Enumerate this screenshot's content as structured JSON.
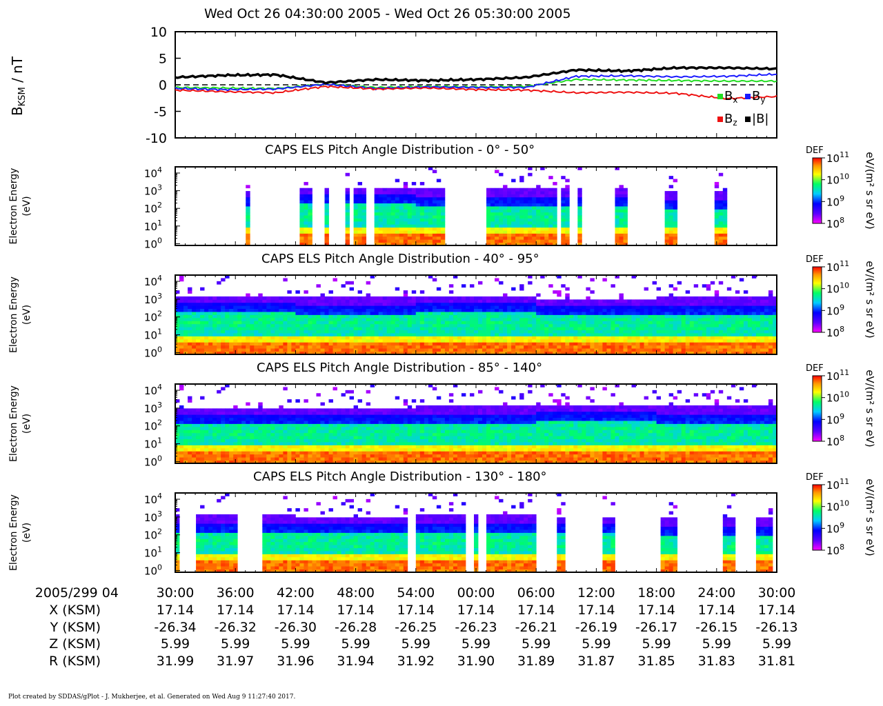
{
  "title": "Wed Oct 26 04:30:00 2005 - Wed Oct 26 05:30:00 2005",
  "footer": "Plot created by SDDAS/gPlot - J. Mukherjee, et al.  Generated on Wed Aug  9 11:27:40 2017.",
  "colors": {
    "bx": "#22dd22",
    "by": "#1a1aff",
    "bz": "#ee1111",
    "b": "#000000"
  },
  "chart_data": [
    {
      "type": "line",
      "ylabel": "B_KSM / nT",
      "ylabel_main": "B",
      "ylabel_sub": "KSM",
      "ylabel_unit": " / nT",
      "ylim": [
        -10,
        10
      ],
      "yticks": [
        "10",
        "5",
        "0",
        "-5",
        "-10"
      ],
      "x_minutes": [
        0,
        5,
        10,
        15,
        20,
        25,
        30,
        35,
        40,
        45,
        50,
        55,
        60
      ],
      "series": [
        {
          "name": "Bx",
          "values": [
            -0.5,
            -0.6,
            -0.7,
            0.1,
            -0.5,
            -0.3,
            -0.4,
            -0.3,
            1.0,
            0.9,
            0.8,
            0.7,
            0.7
          ]
        },
        {
          "name": "By",
          "values": [
            -0.7,
            -0.9,
            -0.8,
            0.1,
            -0.7,
            -0.4,
            -0.5,
            -0.5,
            1.6,
            1.7,
            1.5,
            1.6,
            2.0
          ]
        },
        {
          "name": "Bz",
          "values": [
            -1.0,
            -1.3,
            -1.5,
            -0.3,
            -0.8,
            -0.6,
            -0.9,
            -1.0,
            -1.5,
            -1.4,
            -1.6,
            -2.6,
            -2.2
          ]
        },
        {
          "name": "|B|",
          "values": [
            1.4,
            1.8,
            1.9,
            0.4,
            1.0,
            0.8,
            1.0,
            1.4,
            2.8,
            2.6,
            3.2,
            3.2,
            3.0
          ]
        }
      ],
      "legend": [
        {
          "label": "B",
          "sub": "x"
        },
        {
          "label": "B",
          "sub": "y"
        },
        {
          "label": "B",
          "sub": "z"
        },
        {
          "label": "|B|",
          "sub": ""
        }
      ],
      "legend_position": "bottom-right"
    },
    {
      "type": "heatmap",
      "title": "CAPS ELS Pitch Angle Distribution - 0° - 50°",
      "ylabel": "Electron Energy (eV)",
      "coverage_minutes": [
        [
          7,
          7.4
        ],
        [
          12.5,
          13.5
        ],
        [
          15,
          15.2
        ],
        [
          16,
          16.3
        ],
        [
          17,
          17.4
        ],
        [
          18,
          19
        ],
        [
          20,
          27
        ],
        [
          31,
          38
        ],
        [
          38.5,
          39.5
        ],
        [
          40,
          40.5
        ],
        [
          44,
          45
        ],
        [
          49,
          50
        ],
        [
          54,
          55
        ],
        [
          60.5,
          61.2
        ],
        [
          67,
          67.5
        ],
        [
          72,
          73.5
        ],
        [
          78,
          79
        ]
      ],
      "peak_energy_log10": [
        1.5,
        1.7,
        1.6,
        1.6,
        1.4
      ]
    },
    {
      "type": "heatmap",
      "title": "CAPS ELS Pitch Angle Distribution - 40° - 95°",
      "ylabel": "Electron Energy (eV)",
      "coverage_minutes": [
        [
          0,
          60
        ]
      ],
      "peak_energy_log10": [
        1.7,
        1.6,
        1.7,
        1.5,
        1.6
      ]
    },
    {
      "type": "heatmap",
      "title": "CAPS ELS Pitch Angle Distribution - 85° - 140°",
      "ylabel": "Electron Energy (eV)",
      "coverage_minutes": [
        [
          0,
          60
        ]
      ],
      "peak_energy_log10": [
        1.5,
        1.5,
        1.6,
        1.7,
        1.6
      ]
    },
    {
      "type": "heatmap",
      "title": "CAPS ELS Pitch Angle Distribution - 130° - 180°",
      "ylabel": "Electron Energy (eV)",
      "coverage_minutes": [
        [
          0,
          0.6
        ],
        [
          2,
          6
        ],
        [
          8.5,
          23
        ],
        [
          24,
          29
        ],
        [
          30,
          30.3
        ],
        [
          31,
          36
        ],
        [
          38,
          39
        ],
        [
          42.5,
          44
        ],
        [
          48.5,
          50
        ],
        [
          54.5,
          56
        ],
        [
          58,
          59.5
        ]
      ],
      "peak_energy_log10": [
        1.6,
        1.5,
        1.6,
        1.5,
        1.4
      ]
    }
  ],
  "energy_ticks": [
    "10",
    "10",
    "10",
    "10",
    "10"
  ],
  "energy_tick_exps": [
    "4",
    "3",
    "2",
    "1",
    "0"
  ],
  "energy_label_line1": "Electron Energy",
  "energy_label_line2": "(eV)",
  "colorbar": {
    "label": "DEF",
    "unit": "eV/(m² s sr eV)",
    "tick_base": [
      "10",
      "10",
      "10",
      "10"
    ],
    "tick_exps": [
      "11",
      "10",
      "9",
      "8"
    ]
  },
  "time_axis": {
    "start_label": "2005/299 04",
    "labels": [
      "30:00",
      "36:00",
      "42:00",
      "48:00",
      "54:00",
      "00:00",
      "06:00",
      "12:00",
      "18:00",
      "24:00",
      "30:00"
    ]
  },
  "ephemeris": [
    {
      "label": "X (KSM)",
      "values": [
        "17.14",
        "17.14",
        "17.14",
        "17.14",
        "17.14",
        "17.14",
        "17.14",
        "17.14",
        "17.14",
        "17.14",
        "17.14"
      ]
    },
    {
      "label": "Y (KSM)",
      "values": [
        "-26.34",
        "-26.32",
        "-26.30",
        "-26.28",
        "-26.25",
        "-26.23",
        "-26.21",
        "-26.19",
        "-26.17",
        "-26.15",
        "-26.13"
      ]
    },
    {
      "label": "Z (KSM)",
      "values": [
        "5.99",
        "5.99",
        "5.99",
        "5.99",
        "5.99",
        "5.99",
        "5.99",
        "5.99",
        "5.99",
        "5.99",
        "5.99"
      ]
    },
    {
      "label": "R (KSM)",
      "values": [
        "31.99",
        "31.97",
        "31.96",
        "31.94",
        "31.92",
        "31.90",
        "31.89",
        "31.87",
        "31.85",
        "31.83",
        "31.81"
      ]
    }
  ]
}
